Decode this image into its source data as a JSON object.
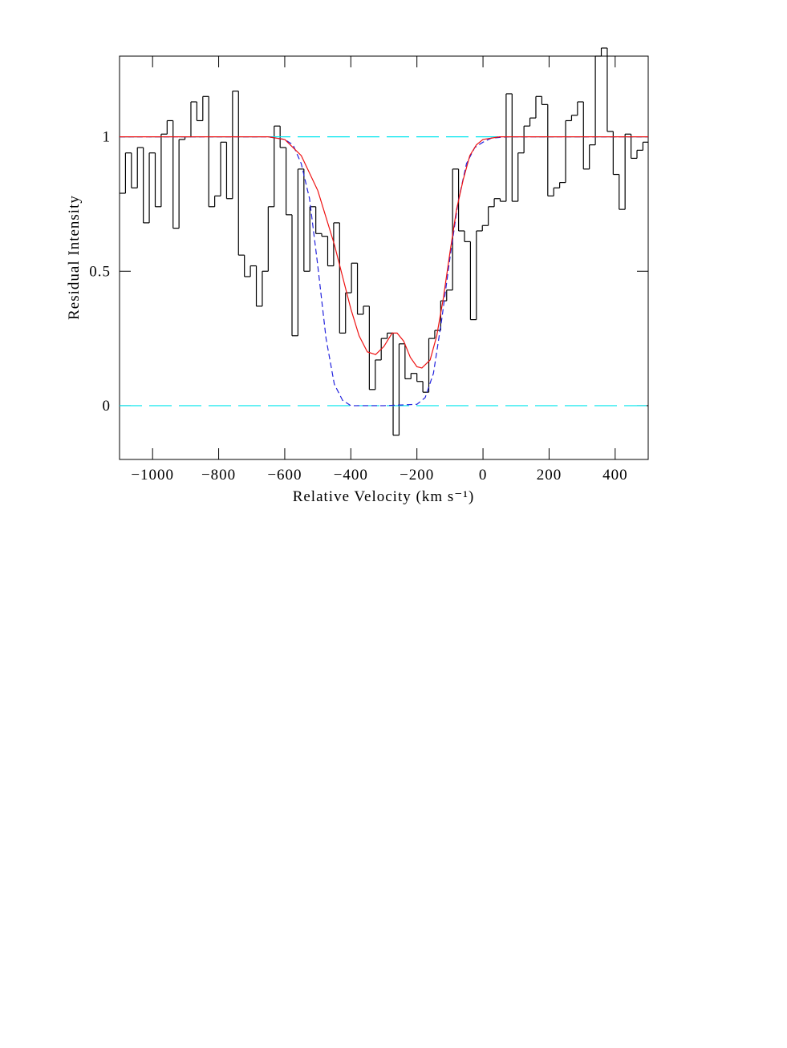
{
  "chart_data": {
    "type": "line",
    "xlabel": "Relative Velocity (km s⁻¹)",
    "ylabel": "Residual Intensity",
    "xlim": [
      -1100,
      500
    ],
    "ylim": [
      -0.2,
      1.3
    ],
    "xticks": [
      {
        "value": -1000,
        "label": "−1000"
      },
      {
        "value": -800,
        "label": "−800"
      },
      {
        "value": -600,
        "label": "−600"
      },
      {
        "value": -400,
        "label": "−400"
      },
      {
        "value": -200,
        "label": "−200"
      },
      0,
      200,
      400
    ],
    "yticks": [
      0,
      0.5,
      1
    ],
    "grid": false,
    "series": [
      {
        "color": "#000000",
        "step": true,
        "dash": false,
        "x": [
          -1091,
          -1073,
          -1055,
          -1037,
          -1019,
          -1001,
          -983,
          -965,
          -947,
          -929,
          -911,
          -893,
          -875,
          -857,
          -839,
          -821,
          -803,
          -785,
          -767,
          -749,
          -731,
          -713,
          -695,
          -677,
          -659,
          -641,
          -623,
          -605,
          -587,
          -569,
          -551,
          -533,
          -515,
          -497,
          -479,
          -461,
          -443,
          -425,
          -407,
          -389,
          -371,
          -353,
          -335,
          -317,
          -299,
          -281,
          -263,
          -245,
          -227,
          -209,
          -191,
          -173,
          -155,
          -137,
          -119,
          -101,
          -83,
          -65,
          -47,
          -29,
          -11,
          7,
          25,
          43,
          61,
          79,
          97,
          115,
          133,
          151,
          169,
          187,
          205,
          223,
          241,
          259,
          277,
          295,
          313,
          331,
          349,
          367,
          385,
          403,
          421,
          439,
          457,
          475,
          493
        ],
        "values": [
          0.79,
          0.94,
          0.81,
          0.96,
          0.68,
          0.94,
          0.74,
          1.01,
          1.06,
          0.66,
          0.99,
          1.0,
          1.13,
          1.06,
          1.15,
          0.74,
          0.78,
          0.98,
          0.77,
          1.17,
          0.56,
          0.48,
          0.52,
          0.37,
          0.5,
          0.74,
          1.04,
          0.96,
          0.71,
          0.26,
          0.88,
          0.5,
          0.74,
          0.64,
          0.63,
          0.52,
          0.68,
          0.27,
          0.42,
          0.53,
          0.34,
          0.37,
          0.06,
          0.17,
          0.25,
          0.27,
          -0.11,
          0.23,
          0.1,
          0.12,
          0.09,
          0.05,
          0.25,
          0.28,
          0.39,
          0.43,
          0.88,
          0.65,
          0.61,
          0.32,
          0.65,
          0.67,
          0.74,
          0.77,
          0.76,
          1.16,
          0.76,
          0.94,
          1.04,
          1.07,
          1.15,
          1.12,
          0.78,
          0.81,
          0.83,
          1.06,
          1.08,
          1.13,
          0.88,
          0.97,
          1.3,
          1.33,
          1.02,
          0.86,
          0.73,
          1.01,
          0.92,
          0.95,
          0.98
        ]
      },
      {
        "color": "#00e5ee",
        "step": false,
        "dash": true,
        "x": [
          -1100,
          500
        ],
        "values": [
          1,
          1
        ]
      },
      {
        "color": "#00e5ee",
        "step": false,
        "dash": true,
        "x": [
          -1100,
          500
        ],
        "values": [
          0,
          0
        ]
      },
      {
        "color": "#2222dd",
        "step": false,
        "dash": true,
        "x": [
          -1100,
          -650,
          -600,
          -575,
          -550,
          -525,
          -500,
          -475,
          -450,
          -425,
          -400,
          -300,
          -200,
          -175,
          -150,
          -125,
          -100,
          -75,
          -50,
          -25,
          0,
          25,
          75,
          500
        ],
        "values": [
          1,
          1,
          0.99,
          0.97,
          0.9,
          0.77,
          0.52,
          0.25,
          0.08,
          0.02,
          0,
          0,
          0.005,
          0.03,
          0.12,
          0.32,
          0.55,
          0.76,
          0.9,
          0.96,
          0.98,
          0.995,
          1,
          1
        ]
      },
      {
        "color": "#ee1111",
        "step": false,
        "dash": false,
        "x": [
          -1100,
          -650,
          -600,
          -550,
          -500,
          -450,
          -400,
          -375,
          -350,
          -325,
          -300,
          -275,
          -260,
          -240,
          -220,
          -200,
          -185,
          -160,
          -140,
          -120,
          -100,
          -80,
          -60,
          -40,
          -20,
          0,
          50,
          500
        ],
        "values": [
          1,
          1,
          0.99,
          0.93,
          0.8,
          0.6,
          0.36,
          0.26,
          0.2,
          0.19,
          0.22,
          0.27,
          0.27,
          0.24,
          0.18,
          0.145,
          0.14,
          0.17,
          0.26,
          0.4,
          0.57,
          0.73,
          0.84,
          0.93,
          0.97,
          0.99,
          1,
          1
        ]
      }
    ]
  }
}
